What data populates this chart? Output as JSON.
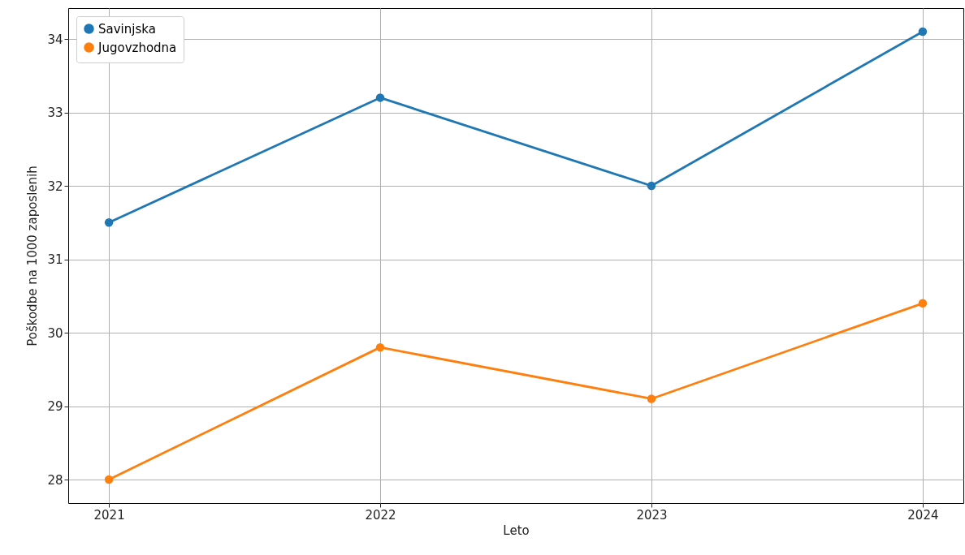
{
  "chart_data": {
    "type": "line",
    "xlabel": "Leto",
    "ylabel": "Poškodbe na 1000 zaposlenih",
    "x": [
      2021,
      2022,
      2023,
      2024
    ],
    "series": [
      {
        "name": "Savinjska",
        "color": "#1f77b4",
        "values": [
          31.5,
          33.2,
          32.0,
          34.1
        ]
      },
      {
        "name": "Jugovzhodna",
        "color": "#ff7f0e",
        "values": [
          28.0,
          29.8,
          29.1,
          30.4
        ]
      }
    ],
    "xlim": [
      2020.85,
      2024.15
    ],
    "xticks": [
      2021,
      2022,
      2023,
      2024
    ],
    "ylim": [
      27.68,
      34.42
    ],
    "yticks": [
      28,
      29,
      30,
      31,
      32,
      33,
      34
    ],
    "grid": true,
    "legend": "top left",
    "marker": "circle",
    "line_style": "solid"
  }
}
